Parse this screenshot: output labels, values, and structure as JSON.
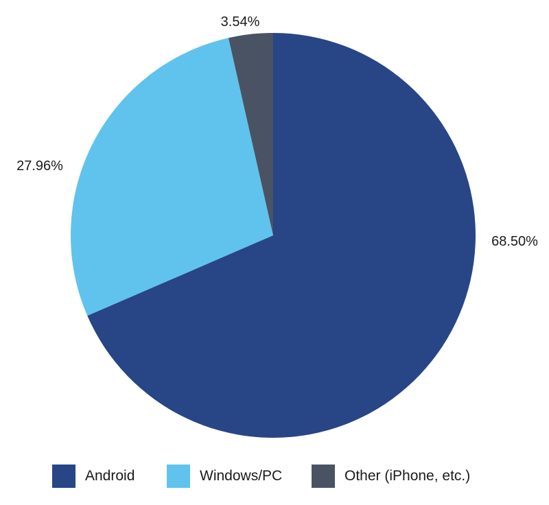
{
  "chart_data": {
    "type": "pie",
    "slices": [
      {
        "label": "Android",
        "value": 68.5,
        "value_label": "68.50%",
        "color": "#284586"
      },
      {
        "label": "Windows/PC",
        "value": 27.96,
        "value_label": "27.96%",
        "color": "#5fc3ed"
      },
      {
        "label": "Other (iPhone, etc.)",
        "value": 3.54,
        "value_label": "3.54%",
        "color": "#4a5363"
      }
    ],
    "start_angle": "top (12 o'clock)",
    "direction": "clockwise",
    "legend_position": "bottom"
  }
}
